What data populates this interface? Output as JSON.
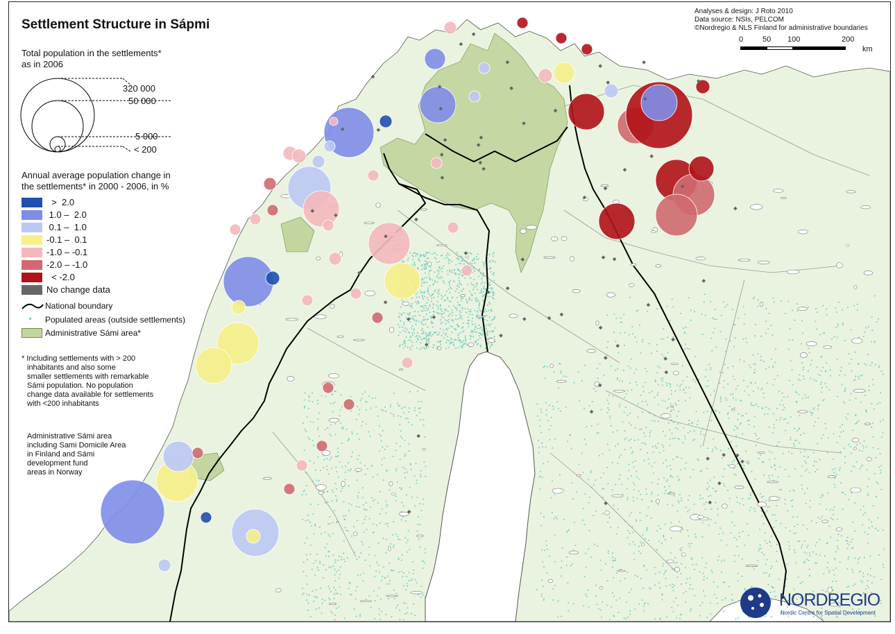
{
  "title": "Settlement Structure in Sápmi",
  "credits": [
    "Analyses & design: J Roto 2010",
    "Data source: NSIs, PELCOM",
    "©Nordregio & NLS Finland for administrative boundaries"
  ],
  "scale_bar": {
    "ticks": [
      "0",
      "50",
      "100",
      "200"
    ],
    "unit": "km"
  },
  "size_legend": {
    "title_line1": "Total population in the settlements*",
    "title_line2": "as in 2006",
    "values": [
      "320 000",
      "50 000",
      "5 000",
      "< 200"
    ]
  },
  "change_legend": {
    "title_line1": "Annual average population change in",
    "title_line2": "the settlements* in 2000 - 2006, in %",
    "classes": [
      {
        "label": "  >  2.0",
        "color": "#1f4fb0"
      },
      {
        "label": " 1.0 –  2.0",
        "color": "#7f8de8"
      },
      {
        "label": " 0.1 –  1.0",
        "color": "#bcc8f4"
      },
      {
        "label": "-0.1 –  0.1",
        "color": "#f5f08a"
      },
      {
        "label": "-1.0 – -0.1",
        "color": "#f4b8bc"
      },
      {
        "label": "-2.0 – -1.0",
        "color": "#cf6a70"
      },
      {
        "label": "  < -2.0",
        "color": "#b01218"
      },
      {
        "label": "No change data",
        "color": "#666666"
      }
    ]
  },
  "other_legend": {
    "boundary": "National boundary",
    "populated": "Populated areas (outside settlements)",
    "sami_area": "Administrative Sámi area*"
  },
  "colors": {
    "land": "#eaf3df",
    "sami": "#c4d6a0",
    "boundary": "#000000",
    "admin_lines": "#9a9a9a",
    "populated": "#7ccfc4",
    "lakes": "#ffffff"
  },
  "footnote_1": [
    "* Including settlements with > 200",
    "inhabitants and also some",
    "smaller settlements with remarkable",
    "Sámi population. No population",
    "change data available for settlements",
    "with <200 inhabitants"
  ],
  "footnote_2": [
    "Administrative Sámi area",
    "including Sami Domicile Area",
    "in Finland and Sámi",
    "development fund",
    "areas in Norway"
  ],
  "logo": {
    "name": "NORDREGIO",
    "subtitle": "Nordic Centre for Spatial Development"
  }
}
